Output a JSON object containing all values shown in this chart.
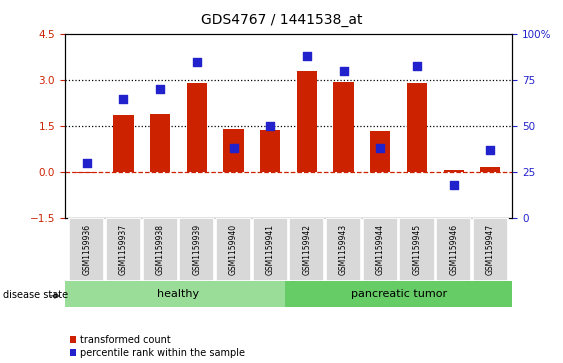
{
  "title": "GDS4767 / 1441538_at",
  "samples": [
    "GSM1159936",
    "GSM1159937",
    "GSM1159938",
    "GSM1159939",
    "GSM1159940",
    "GSM1159941",
    "GSM1159942",
    "GSM1159943",
    "GSM1159944",
    "GSM1159945",
    "GSM1159946",
    "GSM1159947"
  ],
  "transformed_count": [
    -0.05,
    1.85,
    1.9,
    2.9,
    1.42,
    1.38,
    3.3,
    2.95,
    1.35,
    2.9,
    0.08,
    0.15
  ],
  "percentile_rank": [
    30,
    65,
    70,
    85,
    38,
    50,
    88,
    80,
    38,
    83,
    18,
    37
  ],
  "ylim_left": [
    -1.5,
    4.5
  ],
  "ylim_right": [
    0,
    100
  ],
  "yticks_left": [
    -1.5,
    0,
    1.5,
    3.0,
    4.5
  ],
  "yticks_right": [
    0,
    25,
    50,
    75,
    100
  ],
  "hlines": [
    1.5,
    3.0
  ],
  "bar_color": "#cc2200",
  "dot_color": "#2222cc",
  "healthy_color": "#99dd99",
  "tumor_color": "#66cc66",
  "zero_line_color": "#cc2200",
  "bg_color": "#d8d8d8",
  "bar_width": 0.55,
  "dot_size": 28,
  "legend_items": [
    "transformed count",
    "percentile rank within the sample"
  ],
  "n_healthy": 6,
  "n_tumor": 6
}
